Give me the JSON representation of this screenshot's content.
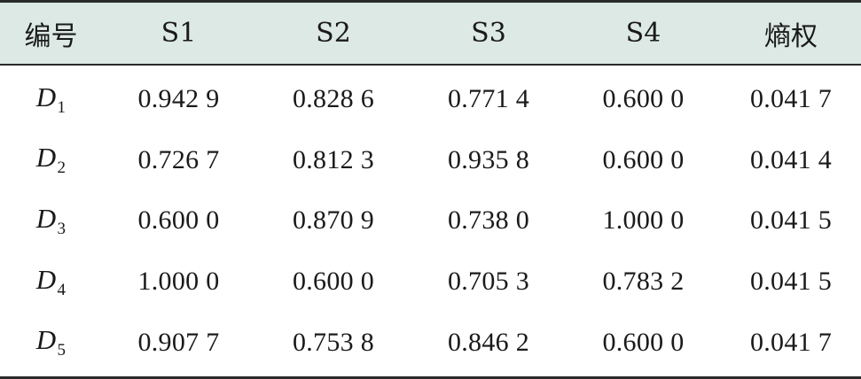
{
  "table": {
    "headers": [
      "编号",
      "S1",
      "S2",
      "S3",
      "S4",
      "熵权"
    ],
    "rows": [
      {
        "label": "D",
        "sub": "1",
        "values": [
          "0.942 9",
          "0.828 6",
          "0.771 4",
          "0.600 0",
          "0.041 7"
        ]
      },
      {
        "label": "D",
        "sub": "2",
        "values": [
          "0.726 7",
          "0.812 3",
          "0.935 8",
          "0.600 0",
          "0.041 4"
        ]
      },
      {
        "label": "D",
        "sub": "3",
        "values": [
          "0.600 0",
          "0.870 9",
          "0.738 0",
          "1.000 0",
          "0.041 5"
        ]
      },
      {
        "label": "D",
        "sub": "4",
        "values": [
          "1.000 0",
          "0.600 0",
          "0.705 3",
          "0.783 2",
          "0.041 5"
        ]
      },
      {
        "label": "D",
        "sub": "5",
        "values": [
          "0.907 7",
          "0.753 8",
          "0.846 2",
          "0.600 0",
          "0.041 7"
        ]
      }
    ]
  },
  "colors": {
    "header_bg": "#dde9e5",
    "rule": "#2a2a2a",
    "text": "#1a1a1a"
  }
}
